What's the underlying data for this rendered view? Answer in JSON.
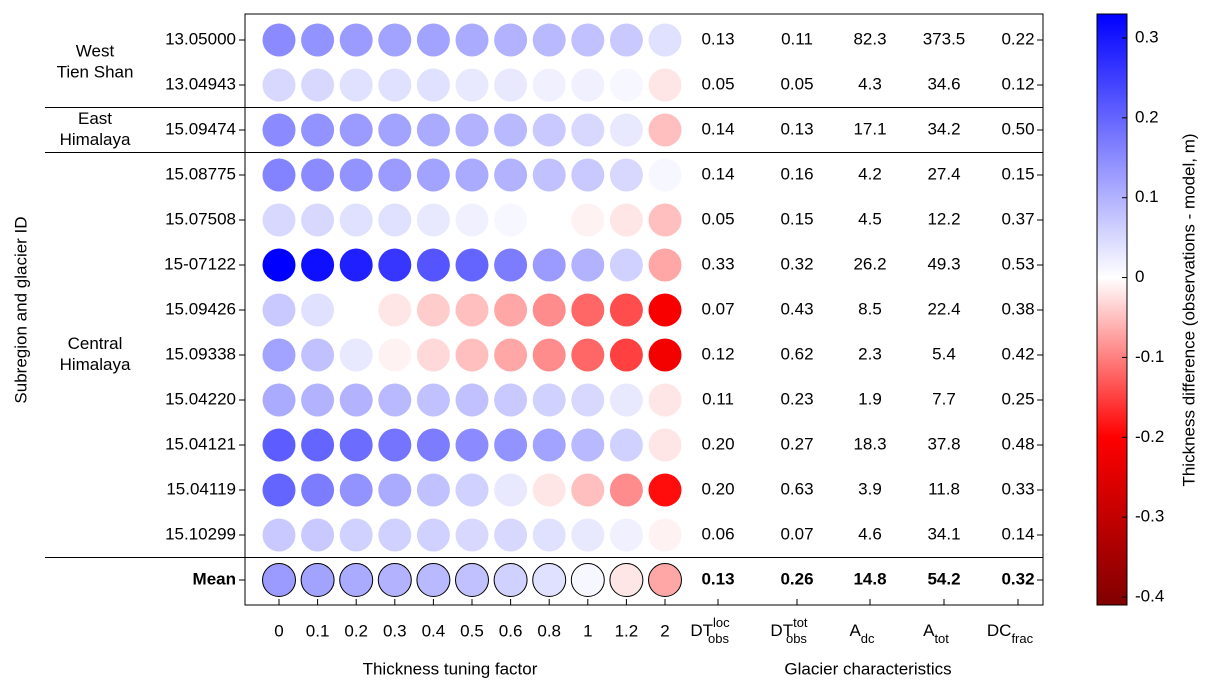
{
  "chart_data": {
    "type": "dotmatrix",
    "y_label": "Subregion and glacier ID",
    "x_label": "Thickness tuning factor",
    "table_label": "Glacier characteristics",
    "colorbar_label": "Thickness difference (observations - model, m)",
    "categories": [
      "0",
      "0.1",
      "0.2",
      "0.3",
      "0.4",
      "0.5",
      "0.6",
      "0.8",
      "1",
      "1.2",
      "2"
    ],
    "table_headers": [
      {
        "base": "DT",
        "sup": "loc",
        "sub": "obs"
      },
      {
        "base": "DT",
        "sup": "tot",
        "sub": "obs"
      },
      {
        "base": "A",
        "sub": "dc"
      },
      {
        "base": "A",
        "sub": "tot"
      },
      {
        "base": "DC",
        "sub": "frac"
      }
    ],
    "groups": [
      {
        "label": [
          "West",
          "Tien Shan"
        ],
        "rows": [
          {
            "id": "13.05000",
            "values": [
              0.15,
              0.14,
              0.13,
              0.12,
              0.12,
              0.11,
              0.1,
              0.09,
              0.08,
              0.07,
              0.04
            ],
            "characteristics": [
              "0.13",
              "0.11",
              "82.3",
              "373.5",
              "0.22"
            ]
          },
          {
            "id": "13.04943",
            "values": [
              0.05,
              0.05,
              0.04,
              0.04,
              0.04,
              0.03,
              0.03,
              0.02,
              0.02,
              0.01,
              -0.02
            ],
            "characteristics": [
              "0.05",
              "0.05",
              "4.3",
              "34.6",
              "0.12"
            ]
          }
        ]
      },
      {
        "label": [
          "East",
          "Himalaya"
        ],
        "rows": [
          {
            "id": "15.09474",
            "values": [
              0.15,
              0.14,
              0.13,
              0.12,
              0.11,
              0.1,
              0.09,
              0.07,
              0.05,
              0.03,
              -0.05
            ],
            "characteristics": [
              "0.14",
              "0.13",
              "17.1",
              "34.2",
              "0.50"
            ]
          }
        ]
      },
      {
        "label": [
          "Central",
          "Himalaya"
        ],
        "rows": [
          {
            "id": "15.08775",
            "values": [
              0.16,
              0.15,
              0.14,
              0.13,
              0.12,
              0.11,
              0.1,
              0.08,
              0.07,
              0.05,
              0.01
            ],
            "characteristics": [
              "0.14",
              "0.16",
              "4.2",
              "27.4",
              "0.15"
            ]
          },
          {
            "id": "15.07508",
            "values": [
              0.05,
              0.05,
              0.04,
              0.04,
              0.03,
              0.02,
              0.01,
              0.0,
              -0.01,
              -0.02,
              -0.05
            ],
            "characteristics": [
              "0.05",
              "0.15",
              "4.5",
              "12.2",
              "0.37"
            ]
          },
          {
            "id": "15-07122",
            "values": [
              0.33,
              0.31,
              0.29,
              0.26,
              0.22,
              0.2,
              0.17,
              0.13,
              0.1,
              0.06,
              -0.07
            ],
            "characteristics": [
              "0.33",
              "0.32",
              "26.2",
              "49.3",
              "0.53"
            ]
          },
          {
            "id": "15.09426",
            "values": [
              0.07,
              0.04,
              0.0,
              -0.02,
              -0.04,
              -0.05,
              -0.07,
              -0.09,
              -0.12,
              -0.14,
              -0.21
            ],
            "characteristics": [
              "0.07",
              "0.43",
              "8.5",
              "22.4",
              "0.38"
            ]
          },
          {
            "id": "15.09338",
            "values": [
              0.12,
              0.08,
              0.03,
              -0.01,
              -0.03,
              -0.05,
              -0.07,
              -0.09,
              -0.12,
              -0.15,
              -0.22
            ],
            "characteristics": [
              "0.12",
              "0.62",
              "2.3",
              "5.4",
              "0.42"
            ]
          },
          {
            "id": "15.04220",
            "values": [
              0.11,
              0.1,
              0.1,
              0.09,
              0.08,
              0.08,
              0.07,
              0.06,
              0.05,
              0.03,
              -0.02
            ],
            "characteristics": [
              "0.11",
              "0.23",
              "1.9",
              "7.7",
              "0.25"
            ]
          },
          {
            "id": "15.04121",
            "values": [
              0.21,
              0.2,
              0.19,
              0.18,
              0.17,
              0.15,
              0.14,
              0.12,
              0.09,
              0.06,
              -0.02
            ],
            "characteristics": [
              "0.20",
              "0.27",
              "18.3",
              "37.8",
              "0.48"
            ]
          },
          {
            "id": "15.04119",
            "values": [
              0.2,
              0.17,
              0.14,
              0.11,
              0.08,
              0.06,
              0.03,
              -0.02,
              -0.05,
              -0.09,
              -0.19
            ],
            "characteristics": [
              "0.20",
              "0.63",
              "3.9",
              "11.8",
              "0.33"
            ]
          },
          {
            "id": "15.10299",
            "values": [
              0.07,
              0.07,
              0.06,
              0.06,
              0.06,
              0.05,
              0.05,
              0.04,
              0.03,
              0.02,
              -0.01
            ],
            "characteristics": [
              "0.06",
              "0.07",
              "4.6",
              "34.1",
              "0.14"
            ]
          }
        ]
      }
    ],
    "mean": {
      "id": "Mean",
      "values": [
        0.13,
        0.12,
        0.11,
        0.1,
        0.09,
        0.08,
        0.06,
        0.04,
        0.01,
        -0.02,
        -0.07
      ],
      "characteristics": [
        "0.13",
        "0.26",
        "14.8",
        "54.2",
        "0.32"
      ]
    },
    "colormap": [
      {
        "value": -0.41,
        "color": "#800000"
      },
      {
        "value": -0.2,
        "color": "#ff0000"
      },
      {
        "value": 0,
        "color": "#ffffff"
      },
      {
        "value": 0.33,
        "color": "#0000ff"
      }
    ],
    "colorbar_ticks": [
      -0.4,
      -0.3,
      -0.2,
      -0.1,
      0,
      0.1,
      0.2,
      0.3
    ]
  }
}
